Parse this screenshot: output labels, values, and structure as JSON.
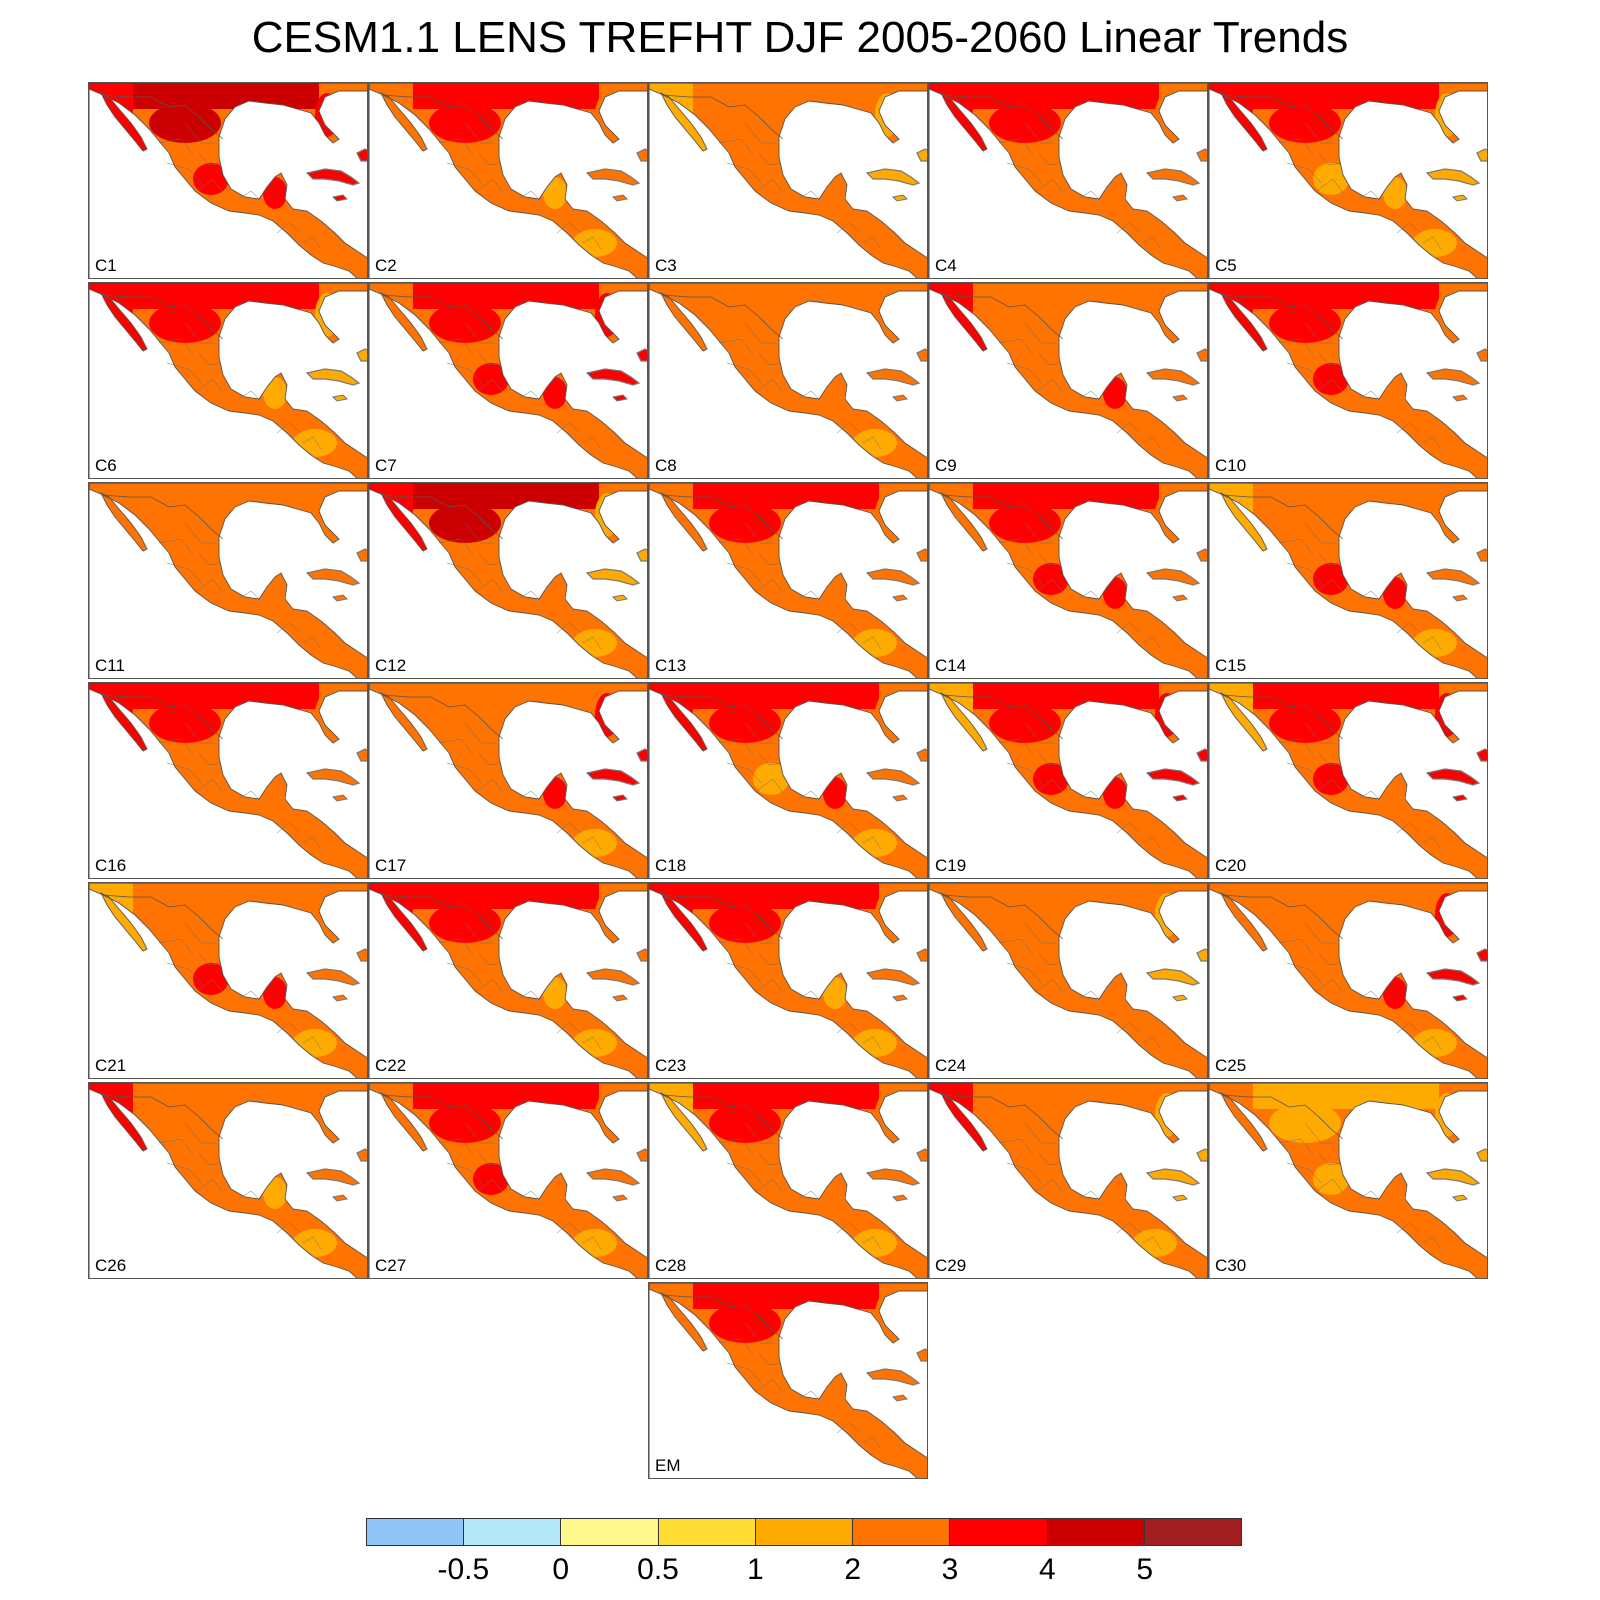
{
  "title": "CESM1.1 LENS TREFHT DJF 2005-2060 Linear Trends",
  "colors": {
    "ocean": "#ffffff",
    "border": "#6e6e6e",
    "coast": "#555555",
    "bins": [
      "#8fc4f5",
      "#b3e8fb",
      "#fff78a",
      "#ffdd33",
      "#ffaa00",
      "#ff7300",
      "#ff0000",
      "#cc0000",
      "#a31f1f"
    ]
  },
  "panels": [
    {
      "label": "C1",
      "base": 5,
      "north": 7,
      "northwest": 6,
      "gulf": 6,
      "yucatan": 6,
      "central": 5,
      "florida": 6
    },
    {
      "label": "C2",
      "base": 5,
      "north": 6,
      "northwest": 5,
      "gulf": 5,
      "yucatan": 4,
      "central": 4,
      "florida": 5
    },
    {
      "label": "C3",
      "base": 5,
      "north": 5,
      "northwest": 4,
      "gulf": 5,
      "yucatan": 5,
      "central": 5,
      "florida": 4
    },
    {
      "label": "C4",
      "base": 5,
      "north": 6,
      "northwest": 6,
      "gulf": 5,
      "yucatan": 5,
      "central": 5,
      "florida": 5
    },
    {
      "label": "C5",
      "base": 5,
      "north": 6,
      "northwest": 6,
      "gulf": 4,
      "yucatan": 4,
      "central": 4,
      "florida": 4
    },
    {
      "label": "C6",
      "base": 5,
      "north": 6,
      "northwest": 6,
      "gulf": 5,
      "yucatan": 4,
      "central": 4,
      "florida": 4
    },
    {
      "label": "C7",
      "base": 5,
      "north": 6,
      "northwest": 5,
      "gulf": 6,
      "yucatan": 6,
      "central": 5,
      "florida": 6
    },
    {
      "label": "C8",
      "base": 5,
      "north": 5,
      "northwest": 5,
      "gulf": 5,
      "yucatan": 5,
      "central": 4,
      "florida": 5
    },
    {
      "label": "C9",
      "base": 5,
      "north": 5,
      "northwest": 6,
      "gulf": 5,
      "yucatan": 6,
      "central": 5,
      "florida": 5
    },
    {
      "label": "C10",
      "base": 5,
      "north": 6,
      "northwest": 6,
      "gulf": 6,
      "yucatan": 5,
      "central": 5,
      "florida": 5
    },
    {
      "label": "C11",
      "base": 5,
      "north": 5,
      "northwest": 5,
      "gulf": 5,
      "yucatan": 5,
      "central": 5,
      "florida": 5
    },
    {
      "label": "C12",
      "base": 5,
      "north": 7,
      "northwest": 6,
      "gulf": 5,
      "yucatan": 5,
      "central": 4,
      "florida": 4
    },
    {
      "label": "C13",
      "base": 5,
      "north": 6,
      "northwest": 5,
      "gulf": 5,
      "yucatan": 5,
      "central": 4,
      "florida": 5
    },
    {
      "label": "C14",
      "base": 5,
      "north": 6,
      "northwest": 5,
      "gulf": 6,
      "yucatan": 6,
      "central": 5,
      "florida": 5
    },
    {
      "label": "C15",
      "base": 5,
      "north": 5,
      "northwest": 4,
      "gulf": 6,
      "yucatan": 6,
      "central": 4,
      "florida": 5
    },
    {
      "label": "C16",
      "base": 5,
      "north": 6,
      "northwest": 6,
      "gulf": 5,
      "yucatan": 5,
      "central": 5,
      "florida": 5
    },
    {
      "label": "C17",
      "base": 5,
      "north": 5,
      "northwest": 5,
      "gulf": 5,
      "yucatan": 6,
      "central": 4,
      "florida": 6
    },
    {
      "label": "C18",
      "base": 5,
      "north": 6,
      "northwest": 6,
      "gulf": 4,
      "yucatan": 6,
      "central": 4,
      "florida": 5
    },
    {
      "label": "C19",
      "base": 5,
      "north": 6,
      "northwest": 4,
      "gulf": 6,
      "yucatan": 6,
      "central": 5,
      "florida": 6
    },
    {
      "label": "C20",
      "base": 5,
      "north": 6,
      "northwest": 4,
      "gulf": 6,
      "yucatan": 5,
      "central": 5,
      "florida": 6
    },
    {
      "label": "C21",
      "base": 5,
      "north": 5,
      "northwest": 4,
      "gulf": 6,
      "yucatan": 6,
      "central": 4,
      "florida": 5
    },
    {
      "label": "C22",
      "base": 5,
      "north": 6,
      "northwest": 6,
      "gulf": 5,
      "yucatan": 4,
      "central": 4,
      "florida": 5
    },
    {
      "label": "C23",
      "base": 5,
      "north": 6,
      "northwest": 6,
      "gulf": 5,
      "yucatan": 4,
      "central": 4,
      "florida": 5
    },
    {
      "label": "C24",
      "base": 5,
      "north": 5,
      "northwest": 5,
      "gulf": 5,
      "yucatan": 5,
      "central": 5,
      "florida": 4
    },
    {
      "label": "C25",
      "base": 5,
      "north": 5,
      "northwest": 5,
      "gulf": 5,
      "yucatan": 6,
      "central": 4,
      "florida": 6
    },
    {
      "label": "C26",
      "base": 5,
      "north": 5,
      "northwest": 6,
      "gulf": 5,
      "yucatan": 4,
      "central": 4,
      "florida": 5
    },
    {
      "label": "C27",
      "base": 5,
      "north": 6,
      "northwest": 5,
      "gulf": 6,
      "yucatan": 5,
      "central": 4,
      "florida": 5
    },
    {
      "label": "C28",
      "base": 5,
      "north": 6,
      "northwest": 4,
      "gulf": 5,
      "yucatan": 5,
      "central": 4,
      "florida": 5
    },
    {
      "label": "C29",
      "base": 5,
      "north": 5,
      "northwest": 6,
      "gulf": 5,
      "yucatan": 5,
      "central": 4,
      "florida": 4
    },
    {
      "label": "C30",
      "base": 5,
      "north": 4,
      "northwest": 5,
      "gulf": 4,
      "yucatan": 5,
      "central": 5,
      "florida": 4
    },
    {
      "label": "EM",
      "base": 5,
      "north": 6,
      "northwest": 5,
      "gulf": 5,
      "yucatan": 5,
      "central": 5,
      "florida": 5
    }
  ],
  "colorbar": {
    "labels": [
      "-0.5",
      "0",
      "0.5",
      "1",
      "2",
      "3",
      "4",
      "5"
    ]
  }
}
